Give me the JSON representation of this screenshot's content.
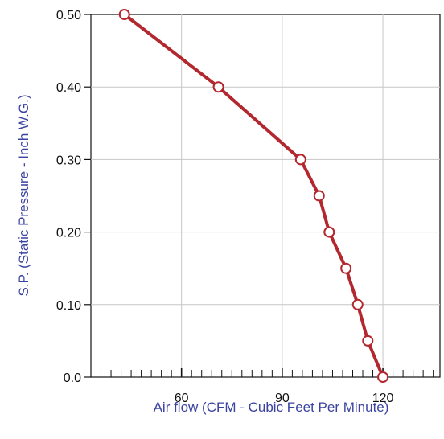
{
  "chart_data": {
    "type": "line",
    "title": "",
    "xlabel": "Air flow (CFM - Cubic Feet Per Minute)",
    "ylabel": "S.P. (Static Pressure - Inch W.G.)",
    "xlim": [
      33,
      137
    ],
    "ylim": [
      0,
      0.5
    ],
    "x_ticks": [
      60,
      90,
      120
    ],
    "x_tick_labels": [
      "60",
      "90",
      "120"
    ],
    "y_ticks": [
      0,
      0.1,
      0.2,
      0.3,
      0.4,
      0.5
    ],
    "y_tick_labels": [
      "0.0",
      "0.10",
      "0.20",
      "0.30",
      "0.40",
      "0.50"
    ],
    "x_minor_step": 3,
    "grid": true,
    "series": [
      {
        "x": [
          43,
          71,
          95.5,
          101,
          104,
          109,
          112.5,
          115.5,
          120
        ],
        "y": [
          0.5,
          0.4,
          0.3,
          0.25,
          0.2,
          0.15,
          0.1,
          0.05,
          0.0
        ],
        "color": "#B3272E",
        "marker": "open-circle"
      }
    ],
    "colors": {
      "line": "#B3272E",
      "marker_fill": "#ffffff",
      "axis_title": "#3B43A0",
      "grid": "#c6c6c6",
      "border": "#111111"
    }
  }
}
